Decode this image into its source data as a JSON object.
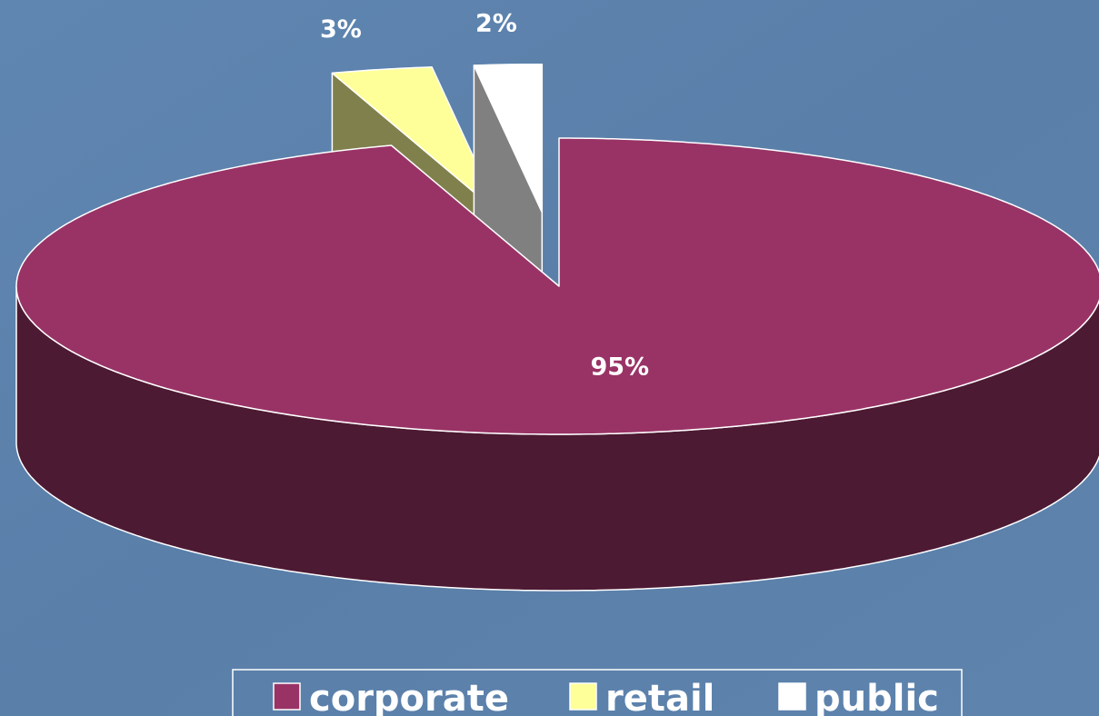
{
  "chart_data": {
    "type": "pie",
    "categories": [
      "corporate",
      "retail",
      "public"
    ],
    "values": [
      95,
      3,
      2
    ],
    "value_labels": [
      "95%",
      "3%",
      "2%"
    ],
    "colors": [
      "#993366",
      "#ffff99",
      "#ffffff"
    ],
    "exploded": [
      false,
      true,
      true
    ],
    "legend": "bottom"
  }
}
